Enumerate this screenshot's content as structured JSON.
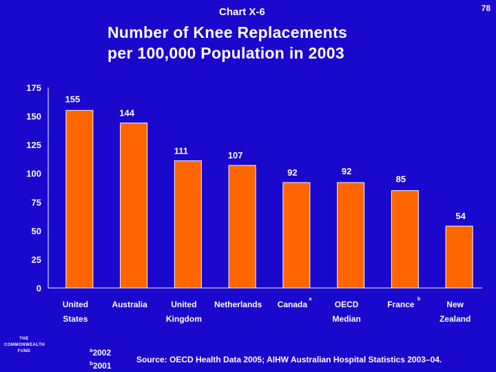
{
  "header": {
    "chart_label": "Chart X-6",
    "page_number": "78",
    "title_line1": "Number of Knee Replacements",
    "title_line2": "per 100,000 Population in 2003"
  },
  "colors": {
    "background": "#1a08cc",
    "bar": "#ff6600",
    "text": "#ffffff"
  },
  "chart_data": {
    "type": "bar",
    "title": "Number of Knee Replacements per 100,000 Population in 2003",
    "xlabel": "",
    "ylabel": "",
    "ylim": [
      0,
      175
    ],
    "yticks": [
      0,
      25,
      50,
      75,
      100,
      125,
      150,
      175
    ],
    "grid": false,
    "categories": [
      {
        "line1": "United",
        "line2": "States",
        "mark": ""
      },
      {
        "line1": "Australia",
        "line2": "",
        "mark": ""
      },
      {
        "line1": "United",
        "line2": "Kingdom",
        "mark": ""
      },
      {
        "line1": "Netherlands",
        "line2": "",
        "mark": ""
      },
      {
        "line1": "Canada",
        "line2": "",
        "mark": "a"
      },
      {
        "line1": "OECD",
        "line2": "Median",
        "mark": ""
      },
      {
        "line1": "France",
        "line2": "",
        "mark": "b"
      },
      {
        "line1": "New",
        "line2": "Zealand",
        "mark": ""
      }
    ],
    "values": [
      155,
      144,
      111,
      107,
      92,
      92,
      85,
      54
    ]
  },
  "footer": {
    "logo_line1": "THE",
    "logo_line2": "COMMONWEALTH",
    "logo_line3": "FUND",
    "note_a_mark": "a",
    "note_a": "2002",
    "note_b_mark": "b",
    "note_b": "2001",
    "source": "Source: OECD Health Data 2005; AIHW Australian Hospital Statistics 2003–04."
  }
}
